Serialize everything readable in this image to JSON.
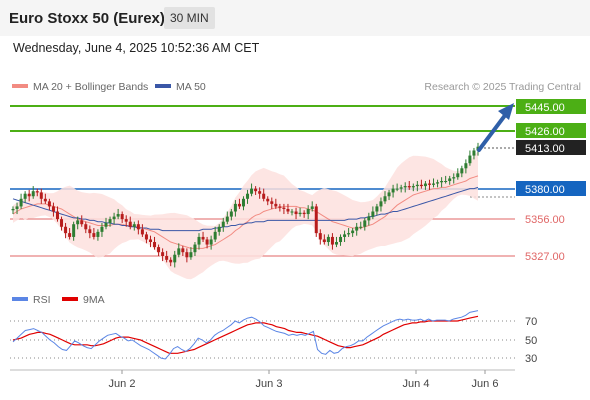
{
  "header": {
    "title": "Euro Stoxx 50 (Eurex)",
    "timeframe": "30 MIN",
    "datetime": "Wednesday, June 4, 2025 10:52:36 AM CET"
  },
  "legend": {
    "ma20_label": "MA 20 + Bollinger Bands",
    "ma50_label": "MA 50",
    "credit": "Research © 2025 Trading Central"
  },
  "colors": {
    "ma20": "#f28b82",
    "band_fill": "#fde0de",
    "ma50": "#3a57a7",
    "resistance": "#4caf15",
    "support": "#e06666",
    "pivot": "#1565c0",
    "current": "#222222",
    "arrow": "#2f5fa8",
    "candle_up": "#2e7d32",
    "candle_down": "#b71c1c",
    "rsi": "#5b86e5",
    "rsi_ma": "#e00000"
  },
  "levels": {
    "r2": "5445.00",
    "r1": "5426.00",
    "last": "5413.00",
    "pivot": "5380.00",
    "s1": "5356.00",
    "s2": "5327.00"
  },
  "rsi_panel": {
    "rsi_label": "RSI",
    "ma_label": "9MA",
    "ticks": [
      "70",
      "50",
      "30"
    ]
  },
  "x_axis": {
    "labels": [
      "Jun 2",
      "Jun 3",
      "Jun 4",
      "Jun 6"
    ]
  },
  "chart_data": [
    {
      "type": "line",
      "title": "Euro Stoxx 50 (Eurex) 30 MIN",
      "x_labels": [
        "Jun 2",
        "Jun 3",
        "Jun 4",
        "Jun 6"
      ],
      "ylim": [
        5308,
        5455
      ],
      "series": [
        {
          "name": "Price",
          "values": [
            5364,
            5366,
            5372,
            5376,
            5374,
            5378,
            5377,
            5372,
            5370,
            5366,
            5362,
            5356,
            5350,
            5345,
            5342,
            5352,
            5355,
            5352,
            5348,
            5345,
            5342,
            5346,
            5350,
            5353,
            5356,
            5358,
            5360,
            5356,
            5354,
            5350,
            5352,
            5348,
            5344,
            5340,
            5338,
            5334,
            5330,
            5327,
            5324,
            5322,
            5328,
            5333,
            5330,
            5326,
            5330,
            5336,
            5342,
            5340,
            5336,
            5340,
            5346,
            5350,
            5354,
            5358,
            5362,
            5368,
            5366,
            5372,
            5376,
            5380,
            5378,
            5376,
            5372,
            5370,
            5368,
            5366,
            5365,
            5364,
            5362,
            5362,
            5360,
            5361,
            5360,
            5364,
            5366,
            5345,
            5340,
            5338,
            5342,
            5336,
            5338,
            5342,
            5344,
            5345,
            5347,
            5350,
            5350,
            5355,
            5358,
            5362,
            5366,
            5370,
            5374,
            5377,
            5380,
            5380,
            5381,
            5382,
            5381,
            5382,
            5383,
            5382,
            5384,
            5383,
            5384,
            5385,
            5386,
            5386,
            5388,
            5389,
            5392,
            5396,
            5400,
            5406,
            5410,
            5413
          ]
        },
        {
          "name": "MA 20",
          "values": [
            5360,
            5362,
            5364,
            5365,
            5366,
            5367,
            5368,
            5368,
            5368,
            5367,
            5366,
            5365,
            5364,
            5362,
            5360,
            5358,
            5356,
            5355,
            5354,
            5353,
            5352,
            5351,
            5351,
            5351,
            5351,
            5352,
            5352,
            5352,
            5351,
            5351,
            5350,
            5350,
            5349,
            5348,
            5347,
            5346,
            5344,
            5342,
            5340,
            5338,
            5337,
            5336,
            5335,
            5334,
            5333,
            5333,
            5333,
            5333,
            5334,
            5335,
            5336,
            5338,
            5340,
            5342,
            5344,
            5347,
            5349,
            5352,
            5354,
            5357,
            5359,
            5360,
            5362,
            5363,
            5364,
            5365,
            5365,
            5366,
            5366,
            5366,
            5366,
            5365,
            5365,
            5364,
            5363,
            5362,
            5360,
            5358,
            5356,
            5354,
            5353,
            5352,
            5351,
            5350,
            5349,
            5349,
            5349,
            5350,
            5351,
            5352,
            5354,
            5356,
            5358,
            5361,
            5364,
            5367,
            5369,
            5371,
            5373,
            5375,
            5376,
            5377,
            5378,
            5379,
            5380,
            5380,
            5381,
            5381,
            5382,
            5383,
            5384,
            5385,
            5386,
            5388,
            5389,
            5390
          ]
        },
        {
          "name": "MA 50",
          "values": [
            5372,
            5371,
            5370,
            5369,
            5368,
            5367,
            5366,
            5365,
            5364,
            5363,
            5362,
            5361,
            5360,
            5359,
            5358,
            5357,
            5357,
            5356,
            5356,
            5355,
            5355,
            5354,
            5354,
            5353,
            5353,
            5352,
            5352,
            5351,
            5351,
            5350,
            5350,
            5349,
            5349,
            5349,
            5348,
            5348,
            5348,
            5347,
            5347,
            5347,
            5347,
            5347,
            5347,
            5347,
            5347,
            5347,
            5347,
            5348,
            5348,
            5348,
            5349,
            5349,
            5350,
            5350,
            5351,
            5351,
            5352,
            5352,
            5353,
            5353,
            5354,
            5354,
            5354,
            5355,
            5355,
            5355,
            5355,
            5355,
            5355,
            5355,
            5355,
            5355,
            5355,
            5355,
            5355,
            5355,
            5355,
            5355,
            5355,
            5355,
            5355,
            5355,
            5355,
            5356,
            5356,
            5356,
            5357,
            5357,
            5358,
            5358,
            5359,
            5360,
            5360,
            5361,
            5362,
            5362,
            5363,
            5364,
            5365,
            5366,
            5367,
            5368,
            5369,
            5370,
            5371,
            5372,
            5373,
            5374,
            5375,
            5376,
            5377,
            5378,
            5379,
            5380,
            5380,
            5381
          ]
        }
      ]
    },
    {
      "type": "line",
      "title": "RSI",
      "ylim": [
        20,
        85
      ],
      "y_ticks": [
        70,
        50,
        30
      ],
      "series": [
        {
          "name": "RSI",
          "values": [
            48,
            52,
            56,
            60,
            61,
            62,
            60,
            58,
            54,
            50,
            47,
            43,
            40,
            39,
            44,
            49,
            47,
            44,
            42,
            41,
            45,
            49,
            52,
            55,
            56,
            57,
            54,
            52,
            49,
            50,
            47,
            44,
            42,
            40,
            37,
            34,
            31,
            30,
            35,
            41,
            43,
            40,
            38,
            41,
            46,
            52,
            50,
            47,
            50,
            55,
            58,
            60,
            63,
            66,
            70,
            68,
            71,
            73,
            74,
            72,
            69,
            65,
            63,
            61,
            59,
            58,
            57,
            55,
            56,
            55,
            56,
            55,
            57,
            59,
            40,
            36,
            35,
            39,
            36,
            37,
            41,
            43,
            44,
            46,
            49,
            49,
            53,
            56,
            59,
            62,
            65,
            67,
            69,
            71,
            72,
            71,
            72,
            71,
            71,
            72,
            70,
            72,
            70,
            71,
            71,
            71,
            70,
            72,
            73,
            74,
            76,
            79,
            80,
            81
          ]
        },
        {
          "name": "9MA",
          "values": [
            50,
            51,
            52,
            54,
            56,
            57,
            58,
            58,
            57,
            56,
            54,
            52,
            50,
            48,
            46,
            45,
            45,
            45,
            45,
            44,
            44,
            45,
            46,
            48,
            50,
            52,
            53,
            53,
            53,
            52,
            51,
            50,
            48,
            46,
            44,
            42,
            40,
            38,
            36,
            36,
            36,
            37,
            38,
            39,
            40,
            42,
            44,
            46,
            48,
            50,
            52,
            54,
            56,
            58,
            60,
            62,
            64,
            66,
            67,
            68,
            68,
            68,
            67,
            66,
            64,
            63,
            62,
            60,
            59,
            58,
            58,
            57,
            56,
            55,
            54,
            52,
            50,
            48,
            46,
            44,
            43,
            42,
            42,
            43,
            44,
            45,
            47,
            49,
            51,
            53,
            56,
            58,
            60,
            62,
            64,
            66,
            67,
            68,
            68,
            69,
            69,
            70,
            70,
            70,
            70,
            70,
            70,
            70,
            70,
            71,
            72,
            73,
            74,
            75
          ]
        }
      ]
    }
  ]
}
